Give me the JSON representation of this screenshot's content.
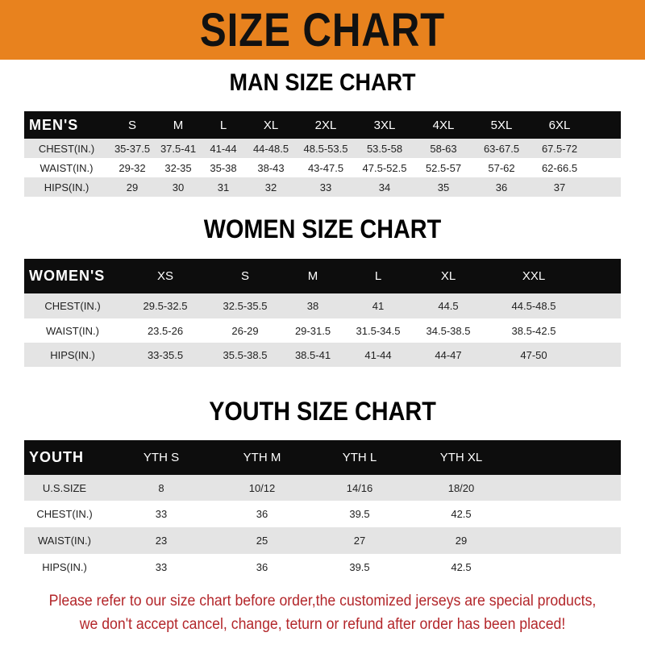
{
  "banner": {
    "title": "SIZE CHART",
    "color": "#e8821e"
  },
  "men": {
    "title": "MAN SIZE CHART",
    "header": [
      "MEN'S",
      "S",
      "M",
      "L",
      "XL",
      "2XL",
      "3XL",
      "4XL",
      "5XL",
      "6XL"
    ],
    "rows": [
      [
        "CHEST(IN.)",
        "35-37.5",
        "37.5-41",
        "41-44",
        "44-48.5",
        "48.5-53.5",
        "53.5-58",
        "58-63",
        "63-67.5",
        "67.5-72"
      ],
      [
        "WAIST(IN.)",
        "29-32",
        "32-35",
        "35-38",
        "38-43",
        "43-47.5",
        "47.5-52.5",
        "52.5-57",
        "57-62",
        "62-66.5"
      ],
      [
        "HIPS(IN.)",
        "29",
        "30",
        "31",
        "32",
        "33",
        "34",
        "35",
        "36",
        "37"
      ]
    ]
  },
  "women": {
    "title": "WOMEN SIZE CHART",
    "header": [
      "WOMEN'S",
      "XS",
      "S",
      "M",
      "L",
      "XL",
      "XXL"
    ],
    "rows": [
      [
        "CHEST(IN.)",
        "29.5-32.5",
        "32.5-35.5",
        "38",
        "41",
        "44.5",
        "44.5-48.5"
      ],
      [
        "WAIST(IN.)",
        "23.5-26",
        "26-29",
        "29-31.5",
        "31.5-34.5",
        "34.5-38.5",
        "38.5-42.5"
      ],
      [
        "HIPS(IN.)",
        "33-35.5",
        "35.5-38.5",
        "38.5-41",
        "41-44",
        "44-47",
        "47-50"
      ]
    ]
  },
  "youth": {
    "title": "YOUTH SIZE CHART",
    "header": [
      "YOUTH",
      "YTH S",
      "YTH M",
      "YTH L",
      "YTH XL"
    ],
    "rows": [
      [
        "U.S.SIZE",
        "8",
        "10/12",
        "14/16",
        "18/20"
      ],
      [
        "CHEST(IN.)",
        "33",
        "36",
        "39.5",
        "42.5"
      ],
      [
        "WAIST(IN.)",
        "23",
        "25",
        "27",
        "29"
      ],
      [
        "HIPS(IN.)",
        "33",
        "36",
        "39.5",
        "42.5"
      ]
    ]
  },
  "note": {
    "line1": "Please refer to our size chart before order,the customized jerseys are special products,",
    "line2": "we don't accept cancel, change, teturn or refund after order has been placed!",
    "color": "#b3262a"
  }
}
